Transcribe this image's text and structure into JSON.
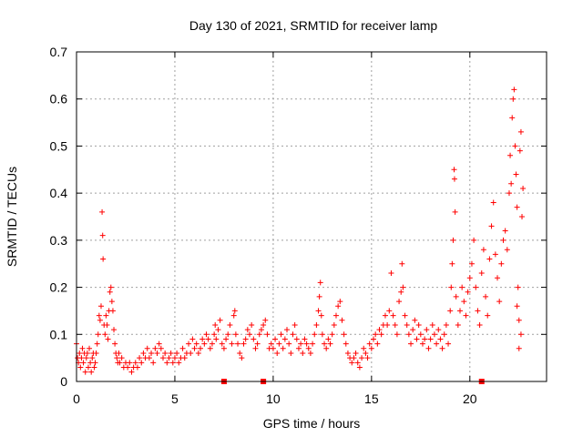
{
  "chart_data": {
    "type": "scatter",
    "title": "Day 130 of 2021, SRMTID for receiver lamp",
    "xlabel": "GPS time / hours",
    "ylabel": "SRMTID / TECUs",
    "xlim": [
      0,
      23.9
    ],
    "ylim": [
      0,
      0.7
    ],
    "xticks": [
      0,
      5,
      10,
      15,
      20
    ],
    "xtick_labels": [
      "0",
      "5",
      "10",
      "15",
      "20"
    ],
    "yticks": [
      0,
      0.1,
      0.2,
      0.3,
      0.4,
      0.5,
      0.6,
      0.7
    ],
    "ytick_labels": [
      "0",
      "0.1",
      "0.2",
      "0.3",
      "0.4",
      "0.5",
      "0.6",
      "0.7"
    ],
    "grid": true,
    "marker": "+",
    "color": "#ff0000",
    "series": [
      {
        "name": "SRMTID",
        "points": [
          [
            0.0,
            0.08
          ],
          [
            0.05,
            0.05
          ],
          [
            0.1,
            0.04
          ],
          [
            0.15,
            0.06
          ],
          [
            0.2,
            0.03
          ],
          [
            0.25,
            0.05
          ],
          [
            0.3,
            0.07
          ],
          [
            0.35,
            0.04
          ],
          [
            0.4,
            0.06
          ],
          [
            0.45,
            0.02
          ],
          [
            0.5,
            0.05
          ],
          [
            0.55,
            0.06
          ],
          [
            0.6,
            0.03
          ],
          [
            0.65,
            0.07
          ],
          [
            0.7,
            0.04
          ],
          [
            0.75,
            0.02
          ],
          [
            0.8,
            0.05
          ],
          [
            0.85,
            0.06
          ],
          [
            0.9,
            0.03
          ],
          [
            0.95,
            0.04
          ],
          [
            1.0,
            0.06
          ],
          [
            1.05,
            0.08
          ],
          [
            1.1,
            0.1
          ],
          [
            1.15,
            0.14
          ],
          [
            1.2,
            0.13
          ],
          [
            1.25,
            0.16
          ],
          [
            1.3,
            0.36
          ],
          [
            1.33,
            0.31
          ],
          [
            1.35,
            0.26
          ],
          [
            1.4,
            0.12
          ],
          [
            1.45,
            0.1
          ],
          [
            1.5,
            0.14
          ],
          [
            1.55,
            0.12
          ],
          [
            1.6,
            0.09
          ],
          [
            1.65,
            0.15
          ],
          [
            1.7,
            0.19
          ],
          [
            1.75,
            0.2
          ],
          [
            1.8,
            0.17
          ],
          [
            1.85,
            0.15
          ],
          [
            1.9,
            0.11
          ],
          [
            1.95,
            0.08
          ],
          [
            2.0,
            0.06
          ],
          [
            2.05,
            0.05
          ],
          [
            2.1,
            0.04
          ],
          [
            2.15,
            0.06
          ],
          [
            2.2,
            0.04
          ],
          [
            2.3,
            0.05
          ],
          [
            2.4,
            0.03
          ],
          [
            2.5,
            0.04
          ],
          [
            2.6,
            0.03
          ],
          [
            2.7,
            0.04
          ],
          [
            2.8,
            0.02
          ],
          [
            2.9,
            0.03
          ],
          [
            3.0,
            0.04
          ],
          [
            3.1,
            0.03
          ],
          [
            3.2,
            0.05
          ],
          [
            3.3,
            0.04
          ],
          [
            3.4,
            0.06
          ],
          [
            3.5,
            0.05
          ],
          [
            3.6,
            0.07
          ],
          [
            3.7,
            0.05
          ],
          [
            3.8,
            0.06
          ],
          [
            3.9,
            0.04
          ],
          [
            4.0,
            0.07
          ],
          [
            4.1,
            0.06
          ],
          [
            4.2,
            0.08
          ],
          [
            4.3,
            0.07
          ],
          [
            4.4,
            0.05
          ],
          [
            4.5,
            0.06
          ],
          [
            4.6,
            0.04
          ],
          [
            4.7,
            0.05
          ],
          [
            4.8,
            0.06
          ],
          [
            4.9,
            0.04
          ],
          [
            5.0,
            0.05
          ],
          [
            5.1,
            0.06
          ],
          [
            5.2,
            0.04
          ],
          [
            5.3,
            0.05
          ],
          [
            5.4,
            0.07
          ],
          [
            5.5,
            0.05
          ],
          [
            5.6,
            0.06
          ],
          [
            5.7,
            0.08
          ],
          [
            5.8,
            0.06
          ],
          [
            5.9,
            0.09
          ],
          [
            6.0,
            0.07
          ],
          [
            6.1,
            0.08
          ],
          [
            6.2,
            0.06
          ],
          [
            6.3,
            0.07
          ],
          [
            6.4,
            0.09
          ],
          [
            6.5,
            0.08
          ],
          [
            6.6,
            0.1
          ],
          [
            6.7,
            0.09
          ],
          [
            6.8,
            0.07
          ],
          [
            6.9,
            0.08
          ],
          [
            7.0,
            0.1
          ],
          [
            7.05,
            0.12
          ],
          [
            7.1,
            0.09
          ],
          [
            7.2,
            0.11
          ],
          [
            7.3,
            0.13
          ],
          [
            7.4,
            0.08
          ],
          [
            7.5,
            0.07
          ],
          [
            7.6,
            0.09
          ],
          [
            7.7,
            0.1
          ],
          [
            7.8,
            0.12
          ],
          [
            7.9,
            0.08
          ],
          [
            8.0,
            0.14
          ],
          [
            8.05,
            0.15
          ],
          [
            8.1,
            0.1
          ],
          [
            8.2,
            0.08
          ],
          [
            8.3,
            0.06
          ],
          [
            8.4,
            0.05
          ],
          [
            8.5,
            0.08
          ],
          [
            8.6,
            0.09
          ],
          [
            8.7,
            0.11
          ],
          [
            8.8,
            0.1
          ],
          [
            8.9,
            0.12
          ],
          [
            9.0,
            0.09
          ],
          [
            9.1,
            0.07
          ],
          [
            9.2,
            0.08
          ],
          [
            9.3,
            0.1
          ],
          [
            9.4,
            0.11
          ],
          [
            9.5,
            0.12
          ],
          [
            9.6,
            0.13
          ],
          [
            9.7,
            0.1
          ],
          [
            9.8,
            0.07
          ],
          [
            9.9,
            0.08
          ],
          [
            10.0,
            0.07
          ],
          [
            10.1,
            0.09
          ],
          [
            10.2,
            0.06
          ],
          [
            10.3,
            0.08
          ],
          [
            10.4,
            0.1
          ],
          [
            10.5,
            0.07
          ],
          [
            10.6,
            0.09
          ],
          [
            10.7,
            0.11
          ],
          [
            10.8,
            0.08
          ],
          [
            10.9,
            0.06
          ],
          [
            11.0,
            0.1
          ],
          [
            11.1,
            0.12
          ],
          [
            11.2,
            0.09
          ],
          [
            11.3,
            0.07
          ],
          [
            11.4,
            0.08
          ],
          [
            11.5,
            0.06
          ],
          [
            11.6,
            0.09
          ],
          [
            11.7,
            0.08
          ],
          [
            11.8,
            0.07
          ],
          [
            11.9,
            0.06
          ],
          [
            12.0,
            0.08
          ],
          [
            12.1,
            0.1
          ],
          [
            12.2,
            0.12
          ],
          [
            12.3,
            0.15
          ],
          [
            12.35,
            0.18
          ],
          [
            12.4,
            0.21
          ],
          [
            12.45,
            0.14
          ],
          [
            12.5,
            0.1
          ],
          [
            12.6,
            0.08
          ],
          [
            12.7,
            0.07
          ],
          [
            12.8,
            0.09
          ],
          [
            12.9,
            0.08
          ],
          [
            13.0,
            0.1
          ],
          [
            13.1,
            0.12
          ],
          [
            13.2,
            0.14
          ],
          [
            13.3,
            0.16
          ],
          [
            13.4,
            0.17
          ],
          [
            13.5,
            0.13
          ],
          [
            13.6,
            0.1
          ],
          [
            13.7,
            0.08
          ],
          [
            13.8,
            0.06
          ],
          [
            13.9,
            0.05
          ],
          [
            14.0,
            0.04
          ],
          [
            14.1,
            0.05
          ],
          [
            14.2,
            0.06
          ],
          [
            14.3,
            0.04
          ],
          [
            14.4,
            0.03
          ],
          [
            14.5,
            0.05
          ],
          [
            14.6,
            0.07
          ],
          [
            14.7,
            0.06
          ],
          [
            14.8,
            0.05
          ],
          [
            14.9,
            0.08
          ],
          [
            15.0,
            0.07
          ],
          [
            15.1,
            0.09
          ],
          [
            15.2,
            0.1
          ],
          [
            15.3,
            0.08
          ],
          [
            15.4,
            0.11
          ],
          [
            15.5,
            0.1
          ],
          [
            15.6,
            0.12
          ],
          [
            15.7,
            0.14
          ],
          [
            15.8,
            0.12
          ],
          [
            15.9,
            0.15
          ],
          [
            16.0,
            0.23
          ],
          [
            16.1,
            0.14
          ],
          [
            16.2,
            0.12
          ],
          [
            16.3,
            0.1
          ],
          [
            16.4,
            0.17
          ],
          [
            16.5,
            0.19
          ],
          [
            16.55,
            0.25
          ],
          [
            16.6,
            0.2
          ],
          [
            16.7,
            0.14
          ],
          [
            16.8,
            0.12
          ],
          [
            16.9,
            0.1
          ],
          [
            17.0,
            0.08
          ],
          [
            17.1,
            0.11
          ],
          [
            17.2,
            0.13
          ],
          [
            17.3,
            0.09
          ],
          [
            17.4,
            0.12
          ],
          [
            17.5,
            0.1
          ],
          [
            17.6,
            0.08
          ],
          [
            17.7,
            0.09
          ],
          [
            17.8,
            0.11
          ],
          [
            17.9,
            0.07
          ],
          [
            18.0,
            0.09
          ],
          [
            18.1,
            0.12
          ],
          [
            18.2,
            0.1
          ],
          [
            18.3,
            0.08
          ],
          [
            18.4,
            0.11
          ],
          [
            18.5,
            0.09
          ],
          [
            18.6,
            0.07
          ],
          [
            18.7,
            0.1
          ],
          [
            18.8,
            0.12
          ],
          [
            18.9,
            0.08
          ],
          [
            19.0,
            0.15
          ],
          [
            19.05,
            0.2
          ],
          [
            19.1,
            0.25
          ],
          [
            19.15,
            0.3
          ],
          [
            19.2,
            0.45
          ],
          [
            19.22,
            0.43
          ],
          [
            19.25,
            0.36
          ],
          [
            19.3,
            0.18
          ],
          [
            19.4,
            0.12
          ],
          [
            19.5,
            0.15
          ],
          [
            19.6,
            0.2
          ],
          [
            19.7,
            0.17
          ],
          [
            19.8,
            0.14
          ],
          [
            19.9,
            0.19
          ],
          [
            20.0,
            0.22
          ],
          [
            20.1,
            0.25
          ],
          [
            20.2,
            0.3
          ],
          [
            20.3,
            0.2
          ],
          [
            20.4,
            0.15
          ],
          [
            20.5,
            0.12
          ],
          [
            20.6,
            0.23
          ],
          [
            20.7,
            0.28
          ],
          [
            20.8,
            0.18
          ],
          [
            20.9,
            0.14
          ],
          [
            21.0,
            0.26
          ],
          [
            21.1,
            0.33
          ],
          [
            21.2,
            0.38
          ],
          [
            21.3,
            0.27
          ],
          [
            21.4,
            0.22
          ],
          [
            21.5,
            0.17
          ],
          [
            21.6,
            0.25
          ],
          [
            21.7,
            0.3
          ],
          [
            21.8,
            0.32
          ],
          [
            21.9,
            0.28
          ],
          [
            22.0,
            0.4
          ],
          [
            22.05,
            0.48
          ],
          [
            22.1,
            0.42
          ],
          [
            22.15,
            0.56
          ],
          [
            22.2,
            0.6
          ],
          [
            22.25,
            0.62
          ],
          [
            22.3,
            0.5
          ],
          [
            22.35,
            0.44
          ],
          [
            22.4,
            0.37
          ],
          [
            22.45,
            0.2
          ],
          [
            22.5,
            0.13
          ],
          [
            22.55,
            0.49
          ],
          [
            22.6,
            0.53
          ],
          [
            22.65,
            0.35
          ],
          [
            22.7,
            0.41
          ],
          [
            22.5,
            0.07
          ],
          [
            22.6,
            0.1
          ],
          [
            22.4,
            0.16
          ]
        ]
      }
    ],
    "baseline_markers_x": [
      7.5,
      9.5,
      20.6
    ]
  }
}
